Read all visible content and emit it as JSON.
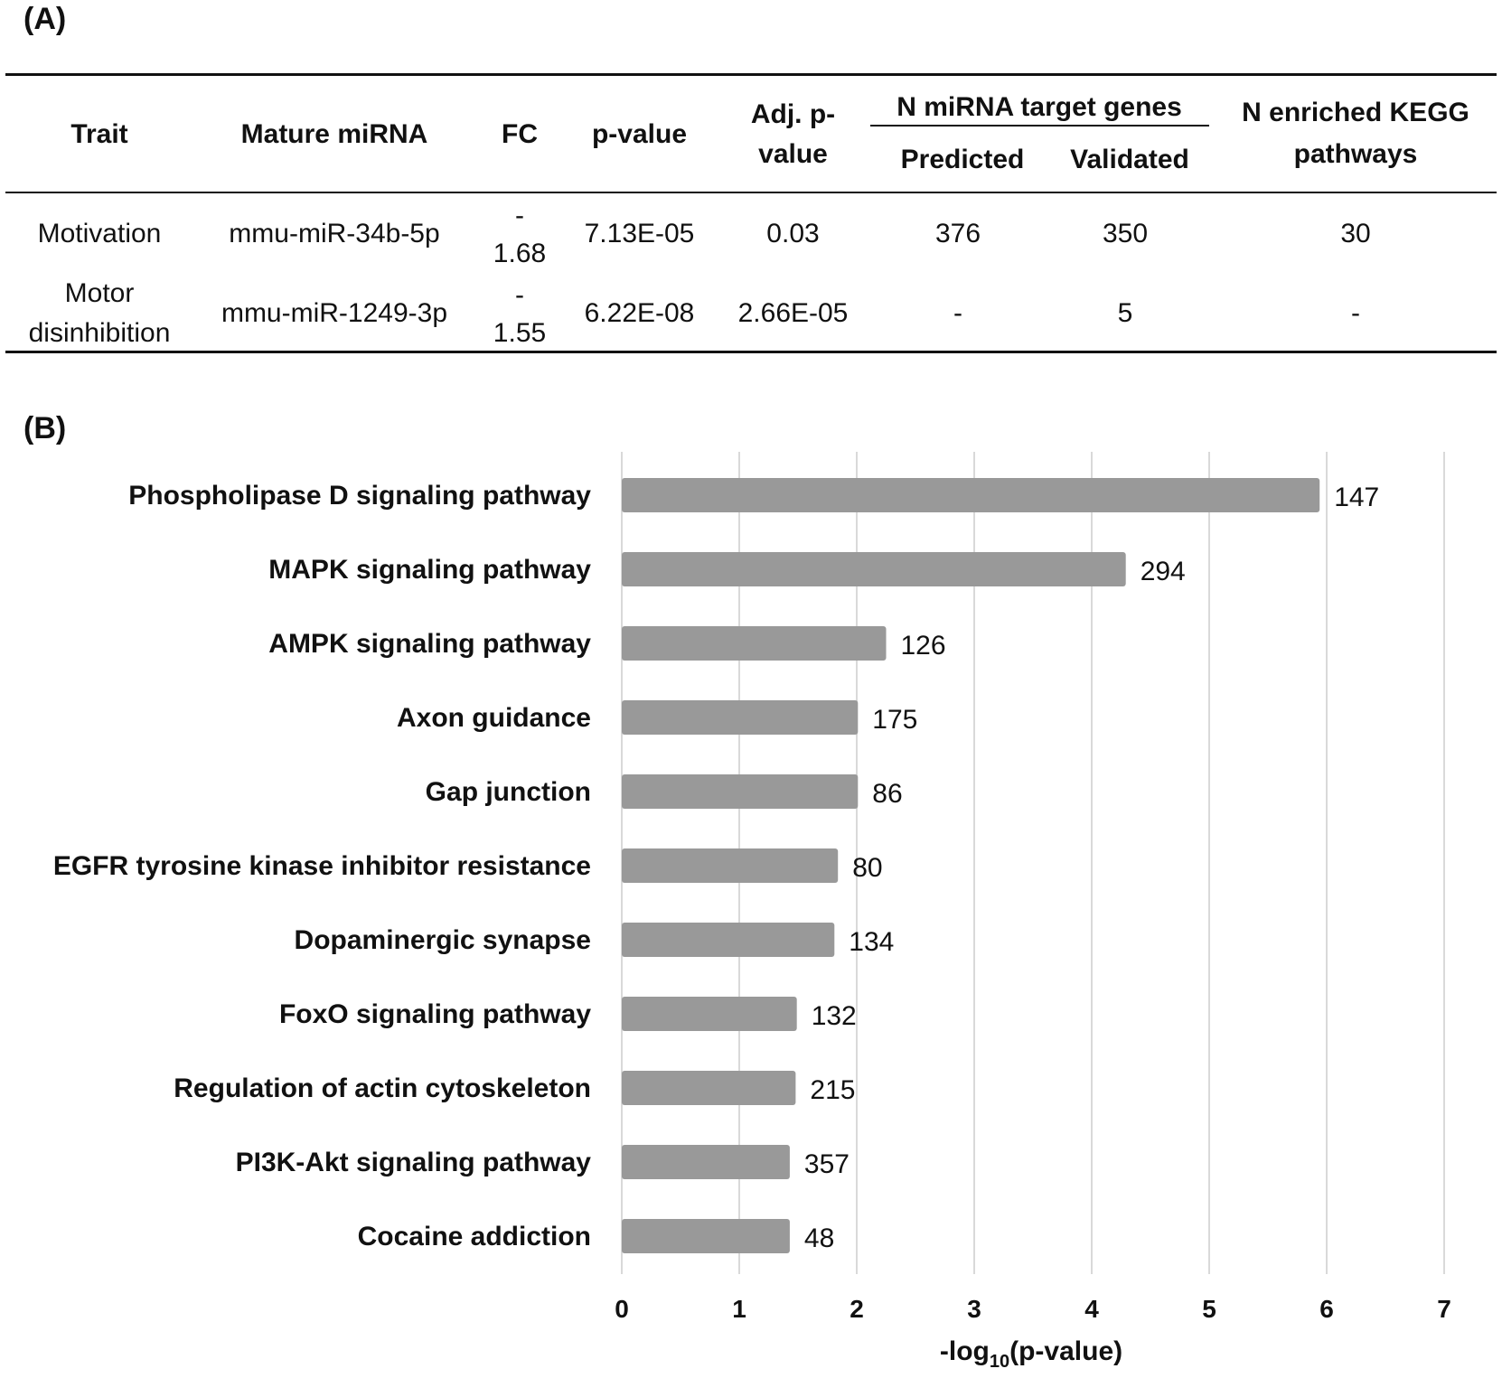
{
  "panel_a": {
    "label": "(A)",
    "headers": {
      "trait": "Trait",
      "mature_mirna": "Mature miRNA",
      "fc": "FC",
      "p_value": "p-value",
      "adj_p_line1": "Adj. p-",
      "adj_p_line2": "value",
      "target_group": "N miRNA target genes",
      "predicted": "Predicted",
      "validated": "Validated",
      "kegg_line1": "N enriched KEGG",
      "kegg_line2": "pathways"
    },
    "rows": [
      {
        "trait_line1": "Motivation",
        "trait_line2": "",
        "mirna": "mmu-miR-34b-5p",
        "fc_line1": "-",
        "fc_line2": "1.68",
        "p_value": "7.13E-05",
        "adj_p": "0.03",
        "predicted": "376",
        "validated": "350",
        "kegg": "30"
      },
      {
        "trait_line1": "Motor",
        "trait_line2": "disinhibition",
        "mirna": "mmu-miR-1249-3p",
        "fc_line1": "-",
        "fc_line2": "1.55",
        "p_value": "6.22E-08",
        "adj_p": "2.66E-05",
        "predicted": "-",
        "validated": "5",
        "kegg": "-"
      }
    ]
  },
  "panel_b": {
    "label": "(B)"
  },
  "chart_data": {
    "type": "bar",
    "orientation": "horizontal",
    "categories": [
      "Phospholipase D signaling pathway",
      "MAPK signaling pathway",
      "AMPK signaling pathway",
      "Axon guidance",
      "Gap junction",
      "EGFR tyrosine kinase inhibitor resistance",
      "Dopaminergic synapse",
      "FoxO signaling pathway",
      "Regulation of actin cytoskeleton",
      "PI3K-Akt signaling pathway",
      "Cocaine addiction"
    ],
    "values": [
      5.94,
      4.29,
      2.25,
      2.01,
      2.01,
      1.84,
      1.81,
      1.49,
      1.48,
      1.43,
      1.43
    ],
    "data_labels": [
      "147",
      "294",
      "126",
      "175",
      "86",
      "80",
      "134",
      "132",
      "215",
      "357",
      "48"
    ],
    "xlabel_main": "-log",
    "xlabel_sub": "10",
    "xlabel_tail": "(p-value)",
    "xlim": [
      0,
      7
    ],
    "xticks": [
      0,
      1,
      2,
      3,
      4,
      5,
      6,
      7
    ],
    "grid": "vertical",
    "bar_color": "#999999",
    "grid_color": "#d9d9d9"
  }
}
